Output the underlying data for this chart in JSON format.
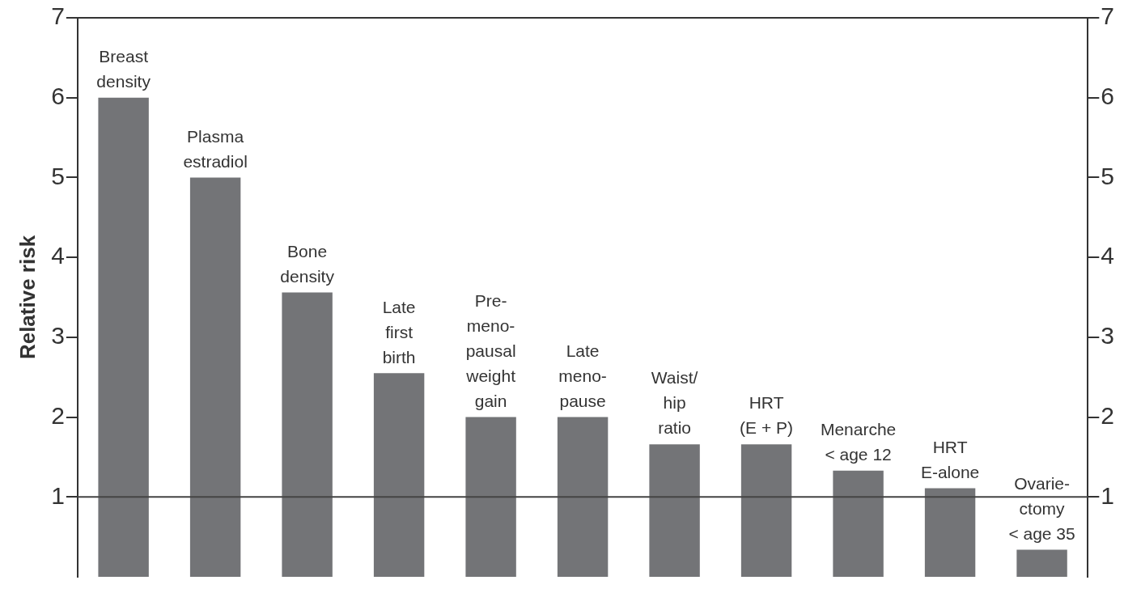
{
  "chart_data": {
    "type": "bar",
    "ylabel": "Relative risk",
    "categories": [
      "Breast\ndensity",
      "Plasma\nestradiol",
      "Bone\ndensity",
      "Late\nfirst\nbirth",
      "Pre-\nmeno-\npausal\nweight\ngain",
      "Late\nmeno-\npause",
      "Waist/\nhip\nratio",
      "HRT\n(E + P)",
      "Menarche\n< age 12",
      "HRT\nE-alone",
      "Ovarie-\nctomy\n< age 35"
    ],
    "values": [
      6,
      5,
      3.56,
      2.55,
      2,
      2,
      1.66,
      1.66,
      1.33,
      1.11,
      0.34
    ],
    "color": "#737477",
    "ylim": [
      0,
      7
    ],
    "yticks": [
      1,
      2,
      3,
      4,
      5,
      6,
      7
    ],
    "y2lim": [
      0,
      7
    ],
    "y2ticks": [
      1,
      2,
      3,
      4,
      5,
      6,
      7
    ],
    "ref_lines": [
      {
        "axis": "y",
        "value": 1,
        "color": "#444444"
      }
    ],
    "grid": false,
    "legend": false
  }
}
